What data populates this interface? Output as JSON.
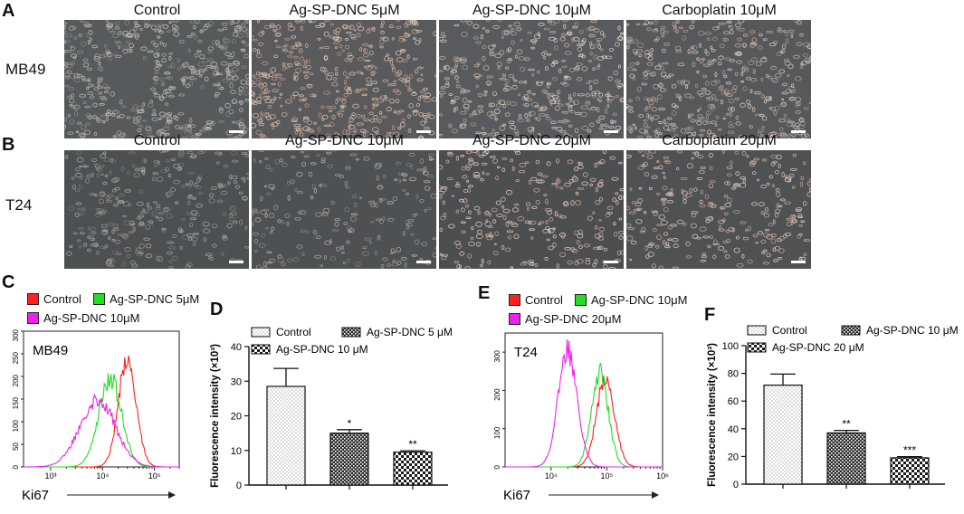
{
  "panels": {
    "A": {
      "letter": "A",
      "row_label": "MB49",
      "titles": [
        "Control",
        "Ag-SP-DNC 5μM",
        "Ag-SP-DNC 10μM",
        "Carboplatin 10μM"
      ]
    },
    "B": {
      "letter": "B",
      "row_label": "T24",
      "titles": [
        "Control",
        "Ag-SP-DNC 10μM",
        "Ag-SP-DNC 20μM",
        "Carboplatin 20μM"
      ]
    },
    "C": {
      "letter": "C",
      "cell_line": "MB49",
      "xlabel": "Ki67",
      "legend": [
        {
          "label": "Control",
          "color": "#ff2020"
        },
        {
          "label": "Ag-SP-DNC 5μM",
          "color": "#22dd22"
        },
        {
          "label": "Ag-SP-DNC 10μM",
          "color": "#ee22ee"
        }
      ]
    },
    "D": {
      "letter": "D"
    },
    "E": {
      "letter": "E",
      "cell_line": "T24",
      "xlabel": "Ki67",
      "legend": [
        {
          "label": "Control",
          "color": "#ff2020"
        },
        {
          "label": "Ag-SP-DNC 10μM",
          "color": "#22dd22"
        },
        {
          "label": "Ag-SP-DNC 20μM",
          "color": "#ee22ee"
        }
      ]
    },
    "F": {
      "letter": "F"
    }
  },
  "chart_data": [
    {
      "id": "C",
      "type": "line",
      "xscale": "log",
      "xlim": [
        300,
        300000
      ],
      "ylim": [
        0,
        300
      ],
      "xticks": [
        1000,
        10000,
        100000
      ],
      "xticklabels": [
        "10³",
        "10⁴",
        "10⁵"
      ],
      "yticks": [
        0,
        50,
        100,
        150,
        200,
        250,
        300
      ],
      "yticklabels": [
        "0",
        "50",
        "100",
        "150",
        "200",
        "250",
        "300"
      ],
      "series": [
        {
          "name": "Control",
          "color": "#ff2020",
          "peak": 30000,
          "sigma": 0.17,
          "height": 242
        },
        {
          "name": "Ag-SP-DNC 5μM",
          "color": "#22dd22",
          "peak": 14000,
          "sigma": 0.22,
          "height": 195
        },
        {
          "name": "Ag-SP-DNC 10μM",
          "color": "#ee22ee",
          "peak": 8000,
          "sigma": 0.34,
          "height": 150
        }
      ]
    },
    {
      "id": "D",
      "type": "bar",
      "categories": [
        "Control",
        "Ag-SP-DNC 5 μM",
        "Ag-SP-DNC 10 μM"
      ],
      "values": [
        28.5,
        15.0,
        9.5
      ],
      "errors": [
        5.2,
        1.0,
        0.4
      ],
      "significance": [
        "",
        "*",
        "**"
      ],
      "ylabel": "Fluorescence intensity (×10³)",
      "ylim": [
        0,
        40
      ],
      "yticks": [
        0,
        10,
        20,
        30,
        40
      ],
      "legend": [
        "Control",
        "Ag-SP-DNC 5 μM",
        "Ag-SP-DNC 10 μM"
      ]
    },
    {
      "id": "E",
      "type": "line",
      "xscale": "log",
      "xlim": [
        1500,
        1000000
      ],
      "ylim": [
        0,
        350
      ],
      "xticks": [
        10000,
        100000,
        1000000
      ],
      "xticklabels": [
        "10⁴",
        "10⁵",
        "10⁶"
      ],
      "yticks": [
        0,
        100,
        200,
        300
      ],
      "yticklabels": [
        "0",
        "100",
        "200",
        "300"
      ],
      "series": [
        {
          "name": "Control",
          "color": "#ff2020",
          "peak": 95000,
          "sigma": 0.16,
          "height": 235
        },
        {
          "name": "Ag-SP-DNC 10μM",
          "color": "#22dd22",
          "peak": 75000,
          "sigma": 0.15,
          "height": 250
        },
        {
          "name": "Ag-SP-DNC 20μM",
          "color": "#ee22ee",
          "peak": 20000,
          "sigma": 0.17,
          "height": 305
        }
      ]
    },
    {
      "id": "F",
      "type": "bar",
      "categories": [
        "Control",
        "Ag-SP-DNC 10 μM",
        "Ag-SP-DNC 20 μM"
      ],
      "values": [
        71.5,
        37.0,
        19.0
      ],
      "errors": [
        8.0,
        1.8,
        0.8
      ],
      "significance": [
        "",
        "**",
        "***"
      ],
      "ylabel": "Fluorescence intensity (×10³)",
      "ylim": [
        0,
        100
      ],
      "yticks": [
        0,
        20,
        40,
        60,
        80,
        100
      ],
      "legend": [
        "Control",
        "Ag-SP-DNC 10 μM",
        "Ag-SP-DNC 20 μM"
      ]
    }
  ]
}
